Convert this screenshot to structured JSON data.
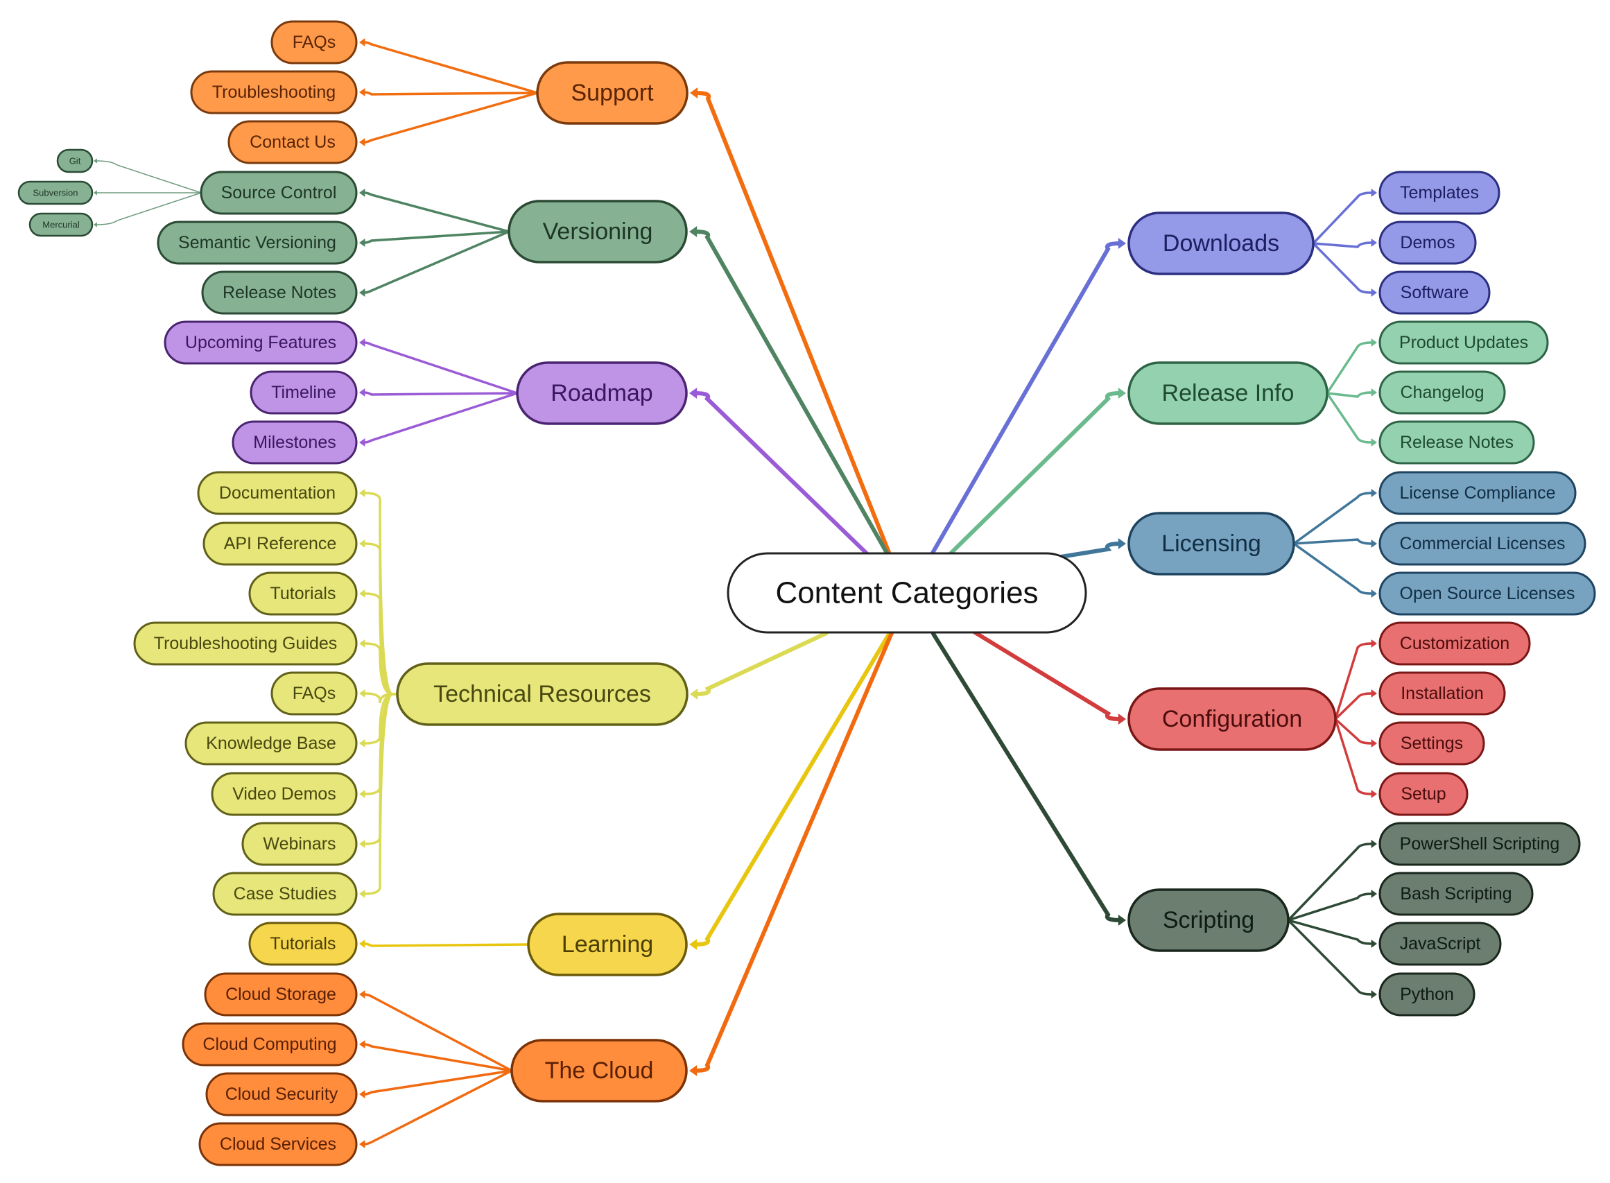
{
  "root": {
    "label": "Content Categories"
  },
  "colors": {
    "support": {
      "fill": "#FF9A4A",
      "stroke": "#7A3A0C",
      "line": "#F26D10",
      "text": "#5A2405"
    },
    "versioning": {
      "fill": "#86B293",
      "stroke": "#2B4A34",
      "line": "#4F8463",
      "text": "#1E3526"
    },
    "roadmap": {
      "fill": "#BF93E6",
      "stroke": "#4A2470",
      "line": "#9A5CD6",
      "text": "#3A1660"
    },
    "technical": {
      "fill": "#E6E67A",
      "stroke": "#606018",
      "line": "#DADA55",
      "text": "#484810"
    },
    "learning": {
      "fill": "#F5D64C",
      "stroke": "#6A5A0A",
      "line": "#E8C60F",
      "text": "#4A3E05"
    },
    "cloud": {
      "fill": "#FF8D3C",
      "stroke": "#7A3206",
      "line": "#F26A10",
      "text": "#5A2005"
    },
    "downloads": {
      "fill": "#9499E8",
      "stroke": "#2C2F80",
      "line": "#6870D6",
      "text": "#1C1E60"
    },
    "release": {
      "fill": "#94D1AE",
      "stroke": "#2E6446",
      "line": "#6BBA8E",
      "text": "#1E4A32"
    },
    "licensing": {
      "fill": "#77A2C0",
      "stroke": "#1E4460",
      "line": "#3F7699",
      "text": "#112E44"
    },
    "configuration": {
      "fill": "#E87070",
      "stroke": "#7A1616",
      "line": "#D23C3C",
      "text": "#4A0C0C"
    },
    "scripting": {
      "fill": "#6B7E70",
      "stroke": "#18261C",
      "line": "#2E4A36",
      "text": "#0E1A12"
    }
  },
  "branches": [
    {
      "id": "support",
      "label": "Support",
      "children": [
        "FAQs",
        "Troubleshooting",
        "Contact Us"
      ]
    },
    {
      "id": "versioning",
      "label": "Versioning",
      "children": [
        "Source Control",
        "Semantic Versioning",
        "Release Notes"
      ],
      "grandchildren": [
        "Git",
        "Subversion",
        "Mercurial"
      ]
    },
    {
      "id": "roadmap",
      "label": "Roadmap",
      "children": [
        "Upcoming Features",
        "Timeline",
        "Milestones"
      ]
    },
    {
      "id": "technical",
      "label": "Technical Resources",
      "children": [
        "Documentation",
        "API Reference",
        "Tutorials",
        "Troubleshooting Guides",
        "FAQs",
        "Knowledge Base",
        "Video Demos",
        "Webinars",
        "Case Studies"
      ]
    },
    {
      "id": "learning",
      "label": "Learning",
      "children": [
        "Tutorials"
      ]
    },
    {
      "id": "cloud",
      "label": "The Cloud",
      "children": [
        "Cloud Storage",
        "Cloud Computing",
        "Cloud Security",
        "Cloud Services"
      ]
    },
    {
      "id": "downloads",
      "label": "Downloads",
      "children": [
        "Templates",
        "Demos",
        "Software"
      ]
    },
    {
      "id": "release",
      "label": "Release Info",
      "children": [
        "Product Updates",
        "Changelog",
        "Release Notes"
      ]
    },
    {
      "id": "licensing",
      "label": "Licensing",
      "children": [
        "License Compliance",
        "Commercial Licenses",
        "Open Source Licenses"
      ]
    },
    {
      "id": "configuration",
      "label": "Configuration",
      "children": [
        "Customization",
        "Installation",
        "Settings",
        "Setup"
      ]
    },
    {
      "id": "scripting",
      "label": "Scripting",
      "children": [
        "PowerShell Scripting",
        "Bash Scripting",
        "JavaScript",
        "Python"
      ]
    }
  ]
}
